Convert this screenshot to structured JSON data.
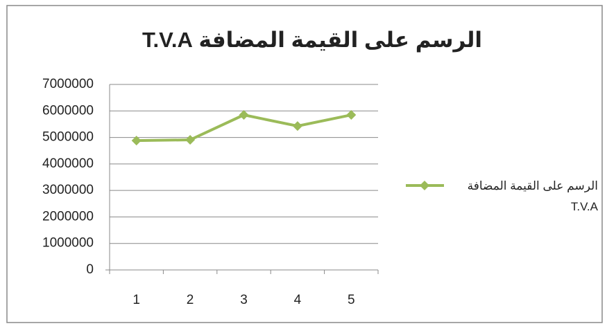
{
  "chart_data": {
    "type": "line",
    "title": "الرسم على القيمة المضافة T.V.A",
    "categories": [
      "1",
      "2",
      "3",
      "4",
      "5"
    ],
    "series": [
      {
        "name": "الرسم على القيمة المضافة T.V.A",
        "color": "#9bbb59",
        "values": [
          4880000,
          4910000,
          5850000,
          5430000,
          5850000
        ]
      }
    ],
    "ylim": [
      0,
      7000000
    ],
    "yticks": [
      0,
      1000000,
      2000000,
      3000000,
      4000000,
      5000000,
      6000000,
      7000000
    ],
    "grid": true,
    "legend": "right"
  }
}
